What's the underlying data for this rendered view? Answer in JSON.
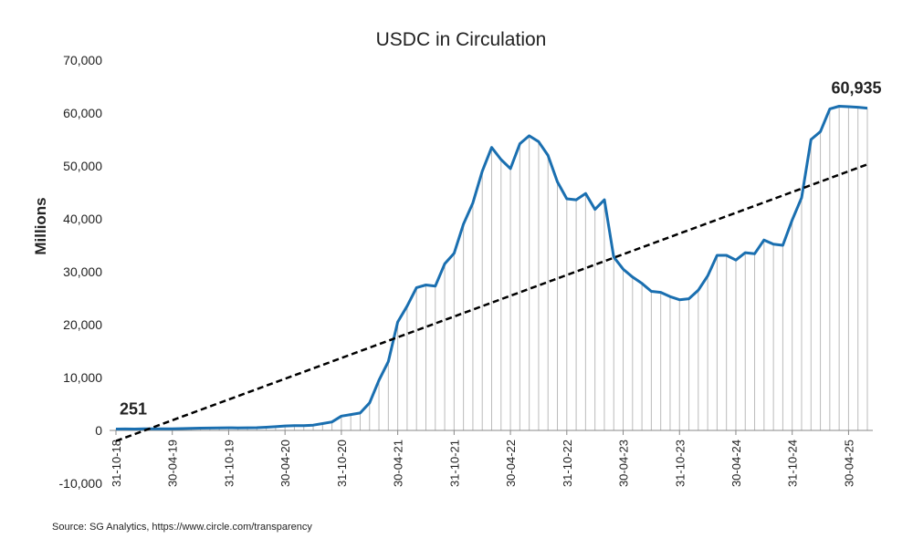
{
  "chart_data": {
    "type": "line",
    "title": "USDC in Circulation",
    "y_label": "Millions",
    "source": "Source: SG Analytics, https://www.circle.com/transparency",
    "categories": [
      "31-10-18",
      null,
      null,
      null,
      null,
      null,
      "30-04-19",
      null,
      null,
      null,
      null,
      null,
      "31-10-19",
      null,
      null,
      null,
      null,
      null,
      "30-04-20",
      null,
      null,
      null,
      null,
      null,
      "31-10-20",
      null,
      null,
      null,
      null,
      null,
      "30-04-21",
      null,
      null,
      null,
      null,
      null,
      "31-10-21",
      null,
      null,
      null,
      null,
      null,
      "30-04-22",
      null,
      null,
      null,
      null,
      null,
      "31-10-22",
      null,
      null,
      null,
      null,
      null,
      "30-04-23",
      null,
      null,
      null,
      null,
      null,
      "31-10-23",
      null,
      null,
      null,
      null,
      null,
      "30-04-24",
      null,
      null,
      null,
      null,
      null,
      "31-10-24",
      null,
      null,
      null,
      null,
      null,
      "30-04-25",
      null,
      null
    ],
    "values": [
      251,
      280,
      260,
      300,
      290,
      300,
      310,
      350,
      400,
      430,
      450,
      480,
      500,
      480,
      500,
      520,
      600,
      700,
      850,
      900,
      900,
      1000,
      1300,
      1600,
      2700,
      3000,
      3300,
      5200,
      9500,
      13000,
      20500,
      23500,
      27000,
      27500,
      27300,
      31500,
      33500,
      39000,
      43000,
      49000,
      53500,
      51200,
      49500,
      54200,
      55700,
      54600,
      52000,
      47000,
      43800,
      43600,
      44800,
      41800,
      43600,
      32800,
      30500,
      29000,
      27800,
      26300,
      26100,
      25300,
      24700,
      24900,
      26500,
      29200,
      33100,
      33100,
      32200,
      33600,
      33400,
      36000,
      35200,
      35000,
      39800,
      44000,
      55000,
      56500,
      60800,
      61300,
      61200,
      61100,
      60935
    ],
    "value_labels": [
      "251",
      null,
      null,
      null,
      null,
      null,
      null,
      null,
      null,
      null,
      null,
      null,
      null,
      null,
      null,
      null,
      null,
      null,
      null,
      null,
      null,
      null,
      null,
      null,
      null,
      null,
      null,
      null,
      null,
      null,
      null,
      null,
      null,
      null,
      null,
      null,
      null,
      null,
      null,
      null,
      null,
      null,
      null,
      null,
      null,
      null,
      null,
      null,
      null,
      null,
      null,
      null,
      null,
      null,
      null,
      null,
      null,
      null,
      null,
      null,
      null,
      null,
      null,
      null,
      null,
      null,
      null,
      null,
      null,
      null,
      null,
      null,
      null,
      null,
      null,
      null,
      null,
      null,
      null,
      null,
      "60,935"
    ],
    "color": "#1a6fb0",
    "drop_line_color": "#bbbbbb",
    "trendline": [
      -2000,
      50300
    ],
    "trendline_color": "#000000",
    "ylim": [
      -10000,
      70000
    ],
    "yticks": [
      {
        "value": -10000,
        "label": "-10,000"
      },
      0,
      {
        "value": 10000,
        "label": "10,000"
      },
      {
        "value": 20000,
        "label": "20,000"
      },
      {
        "value": 30000,
        "label": "30,000"
      },
      {
        "value": 40000,
        "label": "40,000"
      },
      {
        "value": 50000,
        "label": "50,000"
      },
      {
        "value": 60000,
        "label": "60,000"
      },
      {
        "value": 70000,
        "label": "70,000"
      }
    ]
  }
}
